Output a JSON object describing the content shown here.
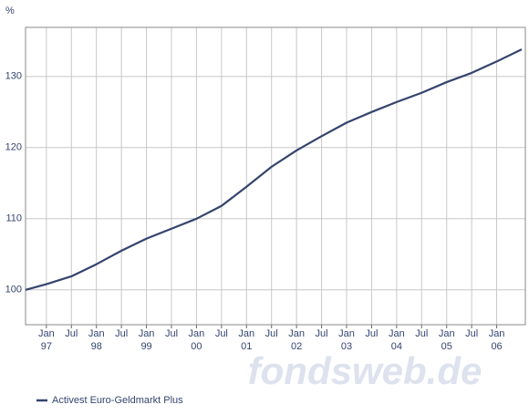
{
  "chart_data": {
    "type": "line",
    "y_unit": "%",
    "x": [
      "1996-08",
      "1997-01",
      "1997-07",
      "1998-01",
      "1998-07",
      "1999-01",
      "1999-07",
      "2000-01",
      "2000-07",
      "2001-01",
      "2001-07",
      "2002-01",
      "2002-07",
      "2003-01",
      "2003-07",
      "2004-01",
      "2004-07",
      "2005-01",
      "2005-07",
      "2006-01",
      "2006-07"
    ],
    "series": [
      {
        "name": "Activest Euro-Geldmarkt Plus",
        "color": "#34446e",
        "values": [
          100.0,
          100.8,
          101.9,
          103.6,
          105.5,
          107.2,
          108.6,
          110.0,
          111.8,
          114.5,
          117.3,
          119.6,
          121.6,
          123.5,
          125.0,
          126.4,
          127.7,
          129.2,
          130.5,
          132.1,
          133.8
        ]
      }
    ],
    "xlim": [
      "1996-08",
      "2006-07"
    ],
    "xticks": [
      {
        "value": "1997-01",
        "label": "Jan"
      },
      {
        "value": "1997-07",
        "label": "Jul"
      },
      {
        "value": "1998-01",
        "label": "Jan"
      },
      {
        "value": "1998-07",
        "label": "Jul"
      },
      {
        "value": "1999-01",
        "label": "Jan"
      },
      {
        "value": "1999-07",
        "label": "Jul"
      },
      {
        "value": "2000-01",
        "label": "Jan"
      },
      {
        "value": "2000-07",
        "label": "Jul"
      },
      {
        "value": "2001-01",
        "label": "Jan"
      },
      {
        "value": "2001-07",
        "label": "Jul"
      },
      {
        "value": "2002-01",
        "label": "Jan"
      },
      {
        "value": "2002-07",
        "label": "Jul"
      },
      {
        "value": "2003-01",
        "label": "Jan"
      },
      {
        "value": "2003-07",
        "label": "Jul"
      },
      {
        "value": "2004-01",
        "label": "Jan"
      },
      {
        "value": "2004-07",
        "label": "Jul"
      },
      {
        "value": "2005-01",
        "label": "Jan"
      },
      {
        "value": "2005-07",
        "label": "Jul"
      },
      {
        "value": "2006-01",
        "label": "Jan"
      }
    ],
    "year_labels": [
      {
        "value": "1997-01",
        "label": "97"
      },
      {
        "value": "1998-01",
        "label": "98"
      },
      {
        "value": "1999-01",
        "label": "99"
      },
      {
        "value": "2000-01",
        "label": "00"
      },
      {
        "value": "2001-01",
        "label": "01"
      },
      {
        "value": "2002-01",
        "label": "02"
      },
      {
        "value": "2003-01",
        "label": "03"
      },
      {
        "value": "2004-01",
        "label": "04"
      },
      {
        "value": "2005-01",
        "label": "05"
      },
      {
        "value": "2006-01",
        "label": "06"
      }
    ],
    "ylim": [
      95.1,
      136.9
    ],
    "yticks": [
      100,
      110,
      120,
      130
    ],
    "grid": true,
    "watermark": "fondsweb.de"
  }
}
